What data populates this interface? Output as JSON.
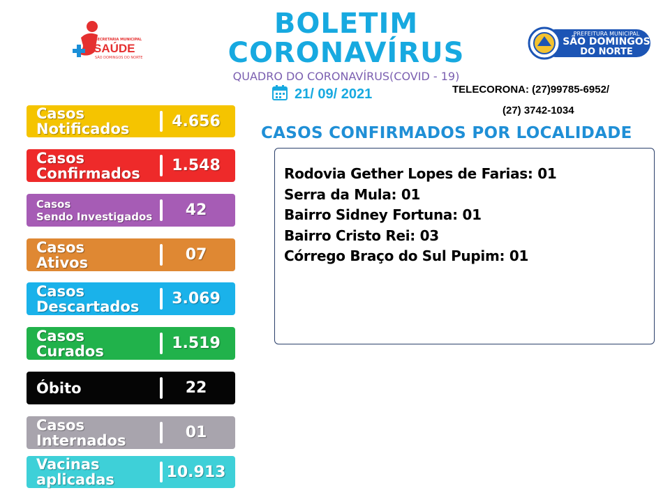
{
  "header": {
    "title_line1": "BOLETIM",
    "title_line2": "CORONAVÍRUS",
    "subtitle": "QUADRO DO CORONAVÍRUS(COVID - 19)",
    "date": "21/ 09/ 2021",
    "telecorona_line1": "TELECORONA: (27)99785-6952/",
    "telecorona_line2": "(27) 3742-1034"
  },
  "logos": {
    "saude": {
      "top_text": "SECRETARIA MUNICIPAL",
      "name": "SAÚDE",
      "bottom_text": "SÃO DOMINGOS DO NORTE"
    },
    "prefeitura": {
      "line1": "PREFEITURA MUNICIPAL",
      "line2": "SÃO DOMINGOS",
      "line3": "DO NORTE"
    }
  },
  "section_title": "CASOS CONFIRMADOS POR LOCALIDADE",
  "localities": [
    "Rodovia Gether Lopes de Farias: 01",
    "Serra da Mula: 01",
    "Bairro Sidney Fortuna: 01",
    "Bairro Cristo Rei: 03",
    "Córrego Braço do Sul Pupim: 01"
  ],
  "stats": [
    {
      "line1": "Casos",
      "line2": "Notificados",
      "value": "4.656",
      "color": "#f5c400"
    },
    {
      "line1": "Casos",
      "line2": "Confirmados",
      "value": "1.548",
      "color": "#ee2a2a"
    },
    {
      "line1": "Casos",
      "line2": "Sendo Investigados",
      "value": "42",
      "color": "#a65cb5"
    },
    {
      "line1": "Casos",
      "line2": "Ativos",
      "value": "07",
      "color": "#df8833"
    },
    {
      "line1": "Casos",
      "line2": "Descartados",
      "value": "3.069",
      "color": "#1ab2ea"
    },
    {
      "line1": "Casos",
      "line2": "Curados",
      "value": "1.519",
      "color": "#21b24b"
    },
    {
      "line1": "Óbito",
      "line2": "",
      "value": "22",
      "color": "#050505"
    },
    {
      "line1": "Casos",
      "line2": "Internados",
      "value": "01",
      "color": "#a8a4ad"
    },
    {
      "line1": "Vacinas",
      "line2": "aplicadas",
      "value": "10.913",
      "color": "#3ed0d8"
    }
  ],
  "icons": {
    "calendar": "calendar-icon"
  }
}
